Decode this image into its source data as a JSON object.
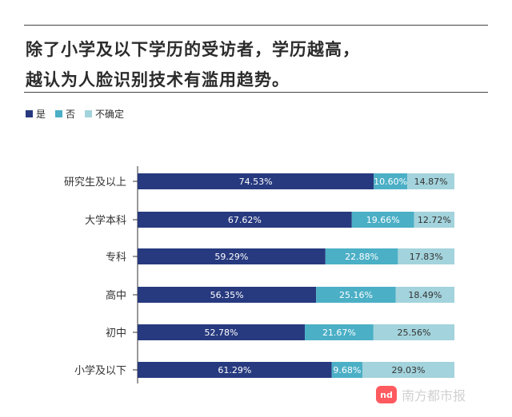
{
  "header": {
    "title_line1": "除了小学及以下学历的受访者，学历越高，",
    "title_line2": "越认为人脸识别技术有滥用趋势。"
  },
  "colors": {
    "yes": "#273a7f",
    "no": "#4bafc6",
    "unsure": "#a3d3dc"
  },
  "chart_data": {
    "type": "bar",
    "orientation": "horizontal",
    "stacked": true,
    "percent": true,
    "categories": [
      "研究生及以上",
      "大学本科",
      "专科",
      "高中",
      "初中",
      "小学及以下"
    ],
    "series": [
      {
        "name": "是",
        "values": [
          74.53,
          67.62,
          59.29,
          56.35,
          52.78,
          61.29
        ],
        "labels": [
          "74.53%",
          "67.62%",
          "59.29%",
          "56.35%",
          "52.78%",
          "61.29%"
        ]
      },
      {
        "name": "否",
        "values": [
          10.6,
          19.66,
          22.88,
          25.16,
          21.67,
          9.68
        ],
        "labels": [
          "10.60%",
          "19.66%",
          "22.88%",
          "25.16%",
          "21.67%",
          "9.68%"
        ]
      },
      {
        "name": "不确定",
        "values": [
          14.87,
          12.72,
          17.83,
          18.49,
          25.56,
          29.03
        ],
        "labels": [
          "14.87%",
          "12.72%",
          "17.83%",
          "18.49%",
          "25.56%",
          "29.03%"
        ]
      }
    ],
    "xlim": [
      0,
      100
    ],
    "grid": false,
    "legend_position": "top-left"
  },
  "watermark": {
    "logo_text": "N̸D",
    "text": "南方都市报"
  }
}
